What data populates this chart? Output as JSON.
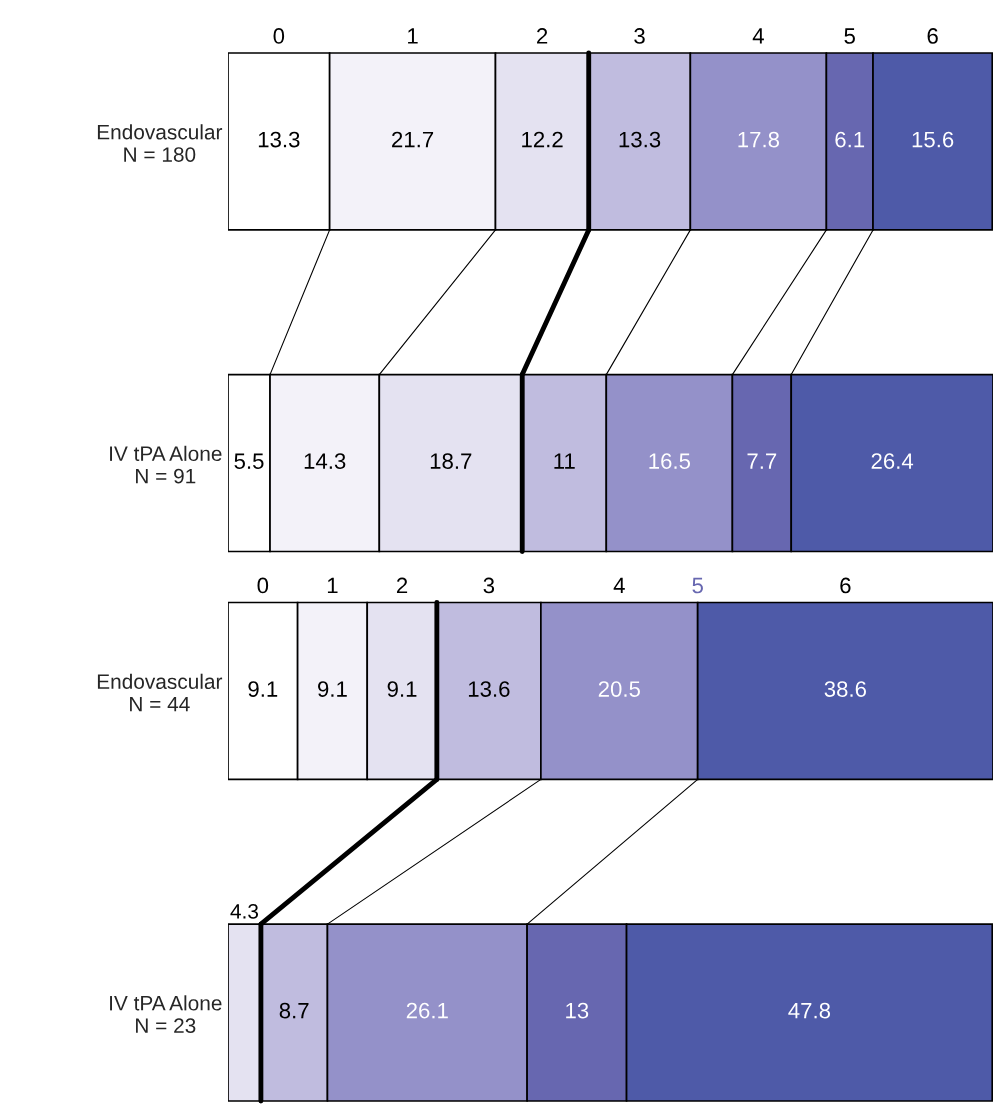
{
  "chart_data": [
    {
      "type": "bar",
      "orientation": "horizontal",
      "stacked": true,
      "categories": [
        "Endovascular\nN = 180",
        "IV tPA Alone\nN = 91"
      ],
      "series": [
        {
          "name": "0",
          "color": "#ffffff",
          "values": [
            13.3,
            5.5
          ],
          "value_labels": [
            "13.3",
            "5.5"
          ]
        },
        {
          "name": "1",
          "color": "#f3f2f9",
          "values": [
            21.7,
            14.3
          ],
          "value_labels": [
            "21.7",
            "14.3"
          ]
        },
        {
          "name": "2",
          "color": "#e4e2f1",
          "values": [
            12.2,
            18.7
          ],
          "value_labels": [
            "12.2",
            "18.7"
          ]
        },
        {
          "name": "3",
          "color": "#c0bcdf",
          "values": [
            13.3,
            11
          ],
          "value_labels": [
            "13.3",
            "11"
          ]
        },
        {
          "name": "4",
          "color": "#9491c9",
          "values": [
            17.8,
            16.5
          ],
          "value_labels": [
            "17.8",
            "16.5"
          ]
        },
        {
          "name": "5",
          "color": "#6767b0",
          "values": [
            6.1,
            7.7
          ],
          "value_labels": [
            "6.1",
            "7.7"
          ]
        },
        {
          "name": "6",
          "color": "#4e5aa8",
          "values": [
            15.6,
            26.4
          ],
          "value_labels": [
            "15.6",
            "26.4"
          ]
        }
      ]
    },
    {
      "type": "bar",
      "orientation": "horizontal",
      "stacked": true,
      "categories": [
        "Endovascular\nN = 44",
        "IV tPA Alone\nN = 23"
      ],
      "series": [
        {
          "name": "0",
          "color": "#ffffff",
          "values": [
            9.1,
            0
          ],
          "value_labels": [
            "9.1",
            null
          ]
        },
        {
          "name": "1",
          "color": "#f3f2f9",
          "values": [
            9.1,
            0
          ],
          "value_labels": [
            "9.1",
            null
          ]
        },
        {
          "name": "2",
          "color": "#e4e2f1",
          "values": [
            9.1,
            4.3
          ],
          "value_labels": [
            "9.1",
            "4.3"
          ]
        },
        {
          "name": "3",
          "color": "#c0bcdf",
          "values": [
            13.6,
            8.7
          ],
          "value_labels": [
            "13.6",
            "8.7"
          ]
        },
        {
          "name": "4",
          "color": "#9491c9",
          "values": [
            20.5,
            26.1
          ],
          "value_labels": [
            "20.5",
            "26.1"
          ]
        },
        {
          "name": "5",
          "color": "#6767b0",
          "values": [
            0,
            13
          ],
          "value_labels": [
            null,
            "13"
          ]
        },
        {
          "name": "6",
          "color": "#4e5aa8",
          "values": [
            38.6,
            47.8
          ],
          "value_labels": [
            "38.6",
            "47.8"
          ]
        }
      ]
    }
  ]
}
